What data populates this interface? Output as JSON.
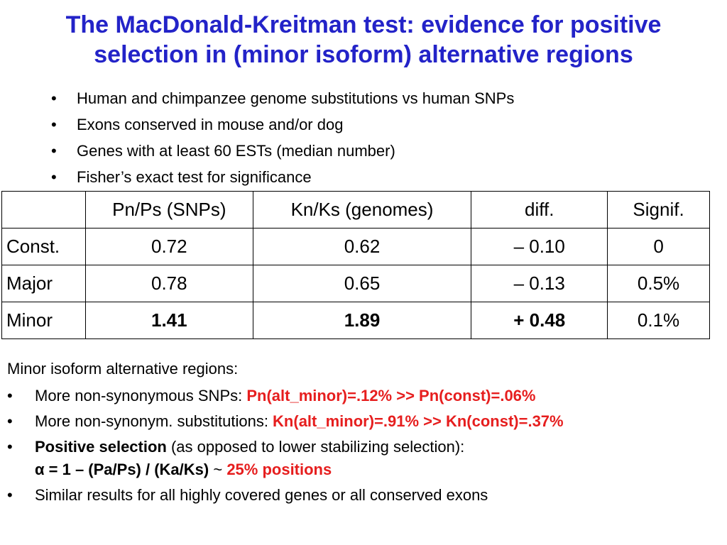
{
  "title": {
    "line1": "The MacDonald-Kreitman test: evidence for positive",
    "line2": "selection in (minor isoform) alternative regions"
  },
  "bullets": [
    "Human and chimpanzee genome substitutions vs human SNPs",
    "Exons conserved in mouse and/or dog",
    "Genes with at least 60 ESTs (median number)",
    "Fisher’s exact test for significance"
  ],
  "bullet_char": "•",
  "table": {
    "headers": [
      "",
      "Pn/Ps (SNPs)",
      "Kn/Ks (genomes)",
      "diff.",
      "Signif."
    ],
    "rows": [
      [
        "Const.",
        "0.72",
        "0.62",
        "– 0.10",
        "0"
      ],
      [
        "Major",
        "0.78",
        "0.65",
        "– 0.13",
        "0.5%"
      ],
      [
        "Minor",
        "1.41",
        "1.89",
        "+ 0.48",
        "0.1%"
      ]
    ]
  },
  "summary": {
    "lead": "Minor isoform alternative regions:",
    "item1_text": "More non-synonymous SNPs: ",
    "item1_red": "Pn(alt_minor)=.12% >> Pn(const)=.06%",
    "item2_text": "More non-synonym. substitutions: ",
    "item2_red": "Kn(alt_minor)=.91% >> Kn(const)=.37%",
    "item3_bold": "Positive selection",
    "item3_text": " (as opposed to lower stabilizing selection):",
    "item3_formula": "α = 1 – (Pa/Ps) / (Ka/Ks)",
    "item3_approx": " ~ ",
    "item3_red": "25% positions",
    "item4_text": "Similar results for all highly covered genes or all conserved exons"
  }
}
